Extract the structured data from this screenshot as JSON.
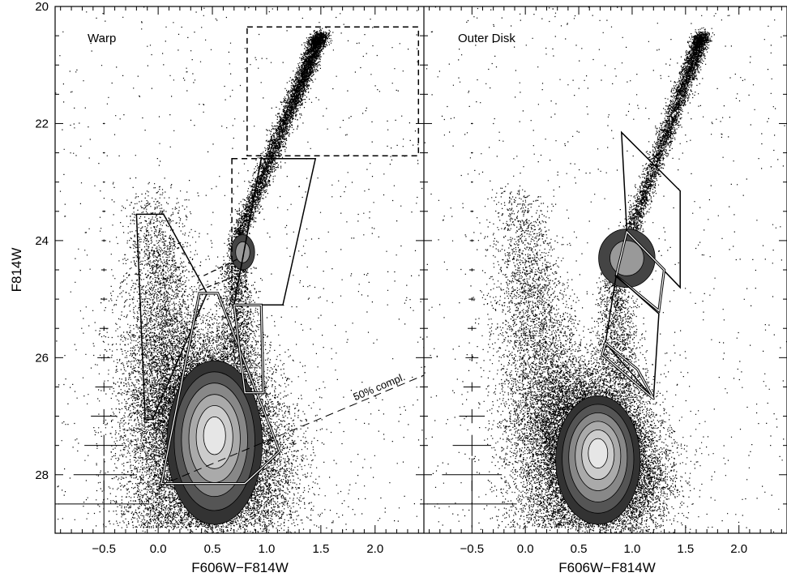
{
  "chart_data": [
    {
      "type": "scatter",
      "panel_label": "Warp",
      "xlabel": "F606W−F814W",
      "ylabel": "F814W",
      "xlim": [
        -0.95,
        2.45
      ],
      "ylim": [
        29.0,
        20.0
      ],
      "y_inverted": true,
      "xticks": [
        -0.5,
        0.0,
        0.5,
        1.0,
        1.5,
        2.0
      ],
      "xtick_labels": [
        "−0.5",
        "0.0",
        "0.5",
        "1.0",
        "1.5",
        "2.0"
      ],
      "yticks": [
        20,
        22,
        24,
        26,
        28
      ],
      "ytick_labels": [
        "20",
        "22",
        "24",
        "26",
        "28"
      ],
      "annotation": {
        "text": "50% compl.",
        "line": [
          [
            0.0,
            28.2
          ],
          [
            2.45,
            26.3
          ]
        ]
      },
      "error_bars": {
        "x": -0.5,
        "mags": [
          22.0,
          22.5,
          23.0,
          23.5,
          24.0,
          24.5,
          25.0,
          25.5,
          26.0,
          26.5,
          27.0,
          27.5,
          28.0,
          28.5
        ],
        "x_err": [
          0.01,
          0.01,
          0.01,
          0.015,
          0.02,
          0.025,
          0.03,
          0.04,
          0.06,
          0.08,
          0.12,
          0.18,
          0.28,
          0.42
        ],
        "y_err": [
          0.01,
          0.01,
          0.01,
          0.015,
          0.02,
          0.025,
          0.03,
          0.04,
          0.06,
          0.08,
          0.12,
          0.18,
          0.28,
          0.4
        ]
      },
      "boxes": [
        {
          "style": "dashed",
          "points": [
            [
              0.82,
              20.35
            ],
            [
              2.4,
              20.35
            ],
            [
              2.4,
              22.55
            ],
            [
              0.82,
              22.55
            ]
          ]
        },
        {
          "style": "solid",
          "points": [
            [
              0.95,
              22.6
            ],
            [
              1.45,
              22.6
            ],
            [
              1.15,
              25.1
            ],
            [
              0.7,
              25.1
            ]
          ]
        },
        {
          "style": "dashed",
          "points": [
            [
              0.68,
              22.6
            ],
            [
              0.95,
              22.6
            ],
            [
              0.7,
              25.1
            ],
            [
              0.68,
              25.1
            ]
          ]
        },
        {
          "style": "solid",
          "points": [
            [
              -0.2,
              23.55
            ],
            [
              0.05,
              23.55
            ],
            [
              0.45,
              24.9
            ],
            [
              -0.05,
              27.05
            ],
            [
              -0.12,
              27.05
            ]
          ]
        },
        {
          "style": "double",
          "points": [
            [
              0.38,
              24.9
            ],
            [
              0.55,
              24.9
            ],
            [
              1.12,
              27.6
            ],
            [
              0.8,
              28.15
            ],
            [
              0.03,
              28.15
            ]
          ]
        },
        {
          "style": "double",
          "points": [
            [
              0.7,
              25.1
            ],
            [
              0.95,
              25.1
            ],
            [
              0.97,
              26.6
            ],
            [
              0.8,
              26.6
            ]
          ]
        }
      ],
      "rgb_dashes": [
        [
          [
            0.38,
            24.85
          ],
          [
            0.72,
            24.6
          ]
        ],
        [
          [
            0.42,
            24.6
          ],
          [
            0.75,
            24.3
          ]
        ]
      ],
      "density_cores": [
        {
          "label": "RC",
          "x": 0.78,
          "y": 24.2,
          "sx": 0.05,
          "sy": 0.15
        },
        {
          "label": "MS",
          "x": 0.52,
          "y": 27.3,
          "sx": 0.2,
          "sy": 0.7
        }
      ]
    },
    {
      "type": "scatter",
      "panel_label": "Outer Disk",
      "xlabel": "F606W−F814W",
      "ylabel": "",
      "xlim": [
        -0.95,
        2.45
      ],
      "ylim": [
        29.0,
        20.0
      ],
      "y_inverted": true,
      "xticks": [
        -0.5,
        0.0,
        0.5,
        1.0,
        1.5,
        2.0
      ],
      "xtick_labels": [
        "−0.5",
        "0.0",
        "0.5",
        "1.0",
        "1.5",
        "2.0"
      ],
      "yticks": [
        20,
        22,
        24,
        26,
        28
      ],
      "error_bars": {
        "x": -0.5,
        "mags": [
          22.0,
          22.5,
          23.0,
          23.5,
          24.0,
          24.5,
          25.0,
          25.5,
          26.0,
          26.5,
          27.0,
          27.5,
          28.0,
          28.5
        ],
        "x_err": [
          0.01,
          0.01,
          0.01,
          0.015,
          0.02,
          0.025,
          0.03,
          0.04,
          0.06,
          0.08,
          0.12,
          0.18,
          0.28,
          0.42
        ],
        "y_err": [
          0.01,
          0.01,
          0.01,
          0.015,
          0.02,
          0.025,
          0.03,
          0.04,
          0.06,
          0.08,
          0.12,
          0.18,
          0.28,
          0.4
        ]
      },
      "boxes": [
        {
          "style": "solid",
          "points": [
            [
              0.9,
              22.15
            ],
            [
              1.45,
              23.15
            ],
            [
              1.45,
              24.8
            ],
            [
              0.95,
              23.85
            ]
          ]
        },
        {
          "style": "double",
          "points": [
            [
              0.95,
              23.85
            ],
            [
              1.3,
              24.5
            ],
            [
              1.25,
              25.2
            ],
            [
              0.85,
              24.6
            ]
          ]
        },
        {
          "style": "solid",
          "points": [
            [
              0.85,
              24.6
            ],
            [
              1.25,
              25.25
            ],
            [
              1.2,
              26.7
            ],
            [
              0.75,
              25.75
            ]
          ]
        },
        {
          "style": "double",
          "points": [
            [
              0.75,
              25.75
            ],
            [
              1.05,
              26.2
            ],
            [
              1.2,
              26.7
            ],
            [
              0.72,
              25.95
            ]
          ]
        }
      ],
      "density_cores": [
        {
          "label": "RC",
          "x": 0.95,
          "y": 24.3,
          "sx": 0.12,
          "sy": 0.25
        },
        {
          "label": "MS",
          "x": 0.68,
          "y": 27.6,
          "sx": 0.18,
          "sy": 0.55
        }
      ]
    }
  ]
}
